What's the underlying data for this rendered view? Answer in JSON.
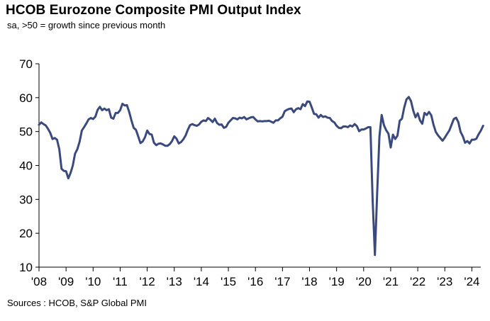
{
  "header": {
    "title": "HCOB Eurozone Composite PMI Output Index",
    "subtitle": "sa, >50 = growth  since previous month"
  },
  "footer": {
    "source": "Sources : HCOB, S&P Global PMI"
  },
  "colors": {
    "line": "#3b4a7e",
    "axis": "#000000"
  },
  "chart_data": {
    "type": "line",
    "title": "HCOB Eurozone Composite PMI Output Index",
    "subtitle": "sa, >50 = growth  since previous month",
    "xlabel": "",
    "ylabel": "",
    "ylim": [
      10,
      70
    ],
    "xlim": [
      2008.0,
      2024.33
    ],
    "grid": false,
    "y_ticks": [
      10,
      20,
      30,
      40,
      50,
      60,
      70
    ],
    "x_ticks": [
      {
        "pos": 2008,
        "label": "'08"
      },
      {
        "pos": 2009,
        "label": "'09"
      },
      {
        "pos": 2010,
        "label": "'10"
      },
      {
        "pos": 2011,
        "label": "'11"
      },
      {
        "pos": 2012,
        "label": "'12"
      },
      {
        "pos": 2013,
        "label": "'13"
      },
      {
        "pos": 2014,
        "label": "'14"
      },
      {
        "pos": 2015,
        "label": "'15"
      },
      {
        "pos": 2016,
        "label": "'16"
      },
      {
        "pos": 2017,
        "label": "'17"
      },
      {
        "pos": 2018,
        "label": "'18"
      },
      {
        "pos": 2019,
        "label": "'19"
      },
      {
        "pos": 2020,
        "label": "'20"
      },
      {
        "pos": 2021,
        "label": "'21"
      },
      {
        "pos": 2022,
        "label": "'22"
      },
      {
        "pos": 2023,
        "label": "'23"
      },
      {
        "pos": 2024,
        "label": "'24"
      }
    ],
    "series": [
      {
        "name": "Composite PMI Output Index",
        "start_year": 2008,
        "start_month": 1,
        "values": [
          52.0,
          52.7,
          52.2,
          51.8,
          50.8,
          49.6,
          47.8,
          48.1,
          47.6,
          44.8,
          39.0,
          38.4,
          38.3,
          36.2,
          37.8,
          40.0,
          43.5,
          44.8,
          47.0,
          50.3,
          51.3,
          52.4,
          53.6,
          54.0,
          53.7,
          54.4,
          56.4,
          57.3,
          56.3,
          56.8,
          56.3,
          56.6,
          54.1,
          53.8,
          55.5,
          55.5,
          56.3,
          58.2,
          57.7,
          57.8,
          55.8,
          53.3,
          51.1,
          50.5,
          48.6,
          46.6,
          47.1,
          48.3,
          50.3,
          49.3,
          49.1,
          46.7,
          46.0,
          46.4,
          46.5,
          46.2,
          45.8,
          45.8,
          46.3,
          47.2,
          48.6,
          47.9,
          46.5,
          46.9,
          47.7,
          48.8,
          50.5,
          51.9,
          52.2,
          51.9,
          51.7,
          52.1,
          52.9,
          53.3,
          53.1,
          54.0,
          53.5,
          52.8,
          53.8,
          52.5,
          52.0,
          52.1,
          51.1,
          51.4,
          52.6,
          53.3,
          54.0,
          53.9,
          53.6,
          54.1,
          53.9,
          54.3,
          53.6,
          53.9,
          54.2,
          54.3,
          53.6,
          53.0,
          53.1,
          53.0,
          53.1,
          53.1,
          53.2,
          52.9,
          52.6,
          53.3,
          53.3,
          53.9,
          54.4,
          56.0,
          56.4,
          56.7,
          56.8,
          55.7,
          56.6,
          56.9,
          56.6,
          58.1,
          57.5,
          58.9,
          58.8,
          57.1,
          55.2,
          55.1,
          54.1,
          54.9,
          54.3,
          54.5,
          54.1,
          54.0,
          53.1,
          52.7,
          51.7,
          51.1,
          51.0,
          51.5,
          51.5,
          51.3,
          51.8,
          51.5,
          52.2,
          51.6,
          50.1,
          50.6,
          50.6,
          50.9,
          51.3,
          51.3,
          29.7,
          13.6,
          31.9,
          48.5,
          54.9,
          51.9,
          50.4,
          49.4,
          45.3,
          49.1,
          47.8,
          48.8,
          53.2,
          53.8,
          57.1,
          59.5,
          60.2,
          59.0,
          56.2,
          54.2,
          55.4,
          53.3,
          52.3,
          55.5,
          54.9,
          55.8,
          54.8,
          52.0,
          49.9,
          48.9,
          48.1,
          47.3,
          48.2,
          49.3,
          50.3,
          52.0,
          53.7,
          54.1,
          52.8,
          49.9,
          48.6,
          46.7,
          47.2,
          46.5,
          47.6,
          47.6,
          47.9,
          49.2,
          50.3,
          51.7
        ]
      }
    ]
  }
}
